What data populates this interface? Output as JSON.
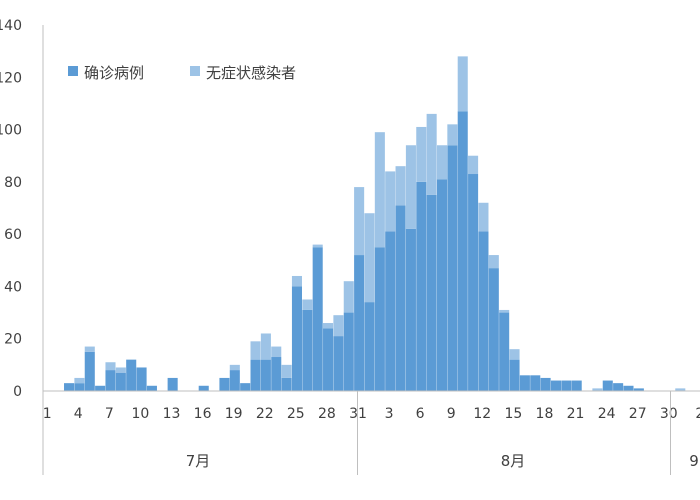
{
  "chart_data": {
    "type": "bar",
    "stacked": true,
    "title": "",
    "xlabel": "",
    "ylabel": "",
    "ylim": [
      0,
      140
    ],
    "yticks": [
      "0",
      "20",
      "40",
      "60",
      "80",
      "100",
      "120",
      "140"
    ],
    "grid": false,
    "legend": {
      "placement": "top-left"
    },
    "x_tick_labels": [
      "1",
      "4",
      "7",
      "10",
      "13",
      "16",
      "19",
      "22",
      "25",
      "28",
      "31",
      "3",
      "6",
      "9",
      "12",
      "15",
      "18",
      "21",
      "24",
      "27",
      "30",
      "2"
    ],
    "month_labels": [
      "7月",
      "8月",
      "9"
    ],
    "series": [
      {
        "name": "确诊病例",
        "color": "#5b9bd5",
        "values": [
          0,
          0,
          3,
          3,
          15,
          2,
          8,
          7,
          12,
          9,
          2,
          0,
          5,
          0,
          0,
          2,
          0,
          5,
          8,
          3,
          12,
          12,
          13,
          5,
          40,
          31,
          55,
          24,
          21,
          30,
          52,
          34,
          55,
          61,
          71,
          62,
          80,
          75,
          81,
          94,
          107,
          83,
          61,
          47,
          30,
          12,
          6,
          6,
          5,
          4,
          4,
          4,
          0,
          0,
          4,
          3,
          2,
          1,
          0,
          0,
          0,
          0,
          0,
          0,
          0,
          0,
          0,
          0,
          0,
          0,
          0,
          0
        ]
      },
      {
        "name": "无症状感染者",
        "color": "#9dc3e6",
        "values": [
          0,
          0,
          0,
          2,
          2,
          0,
          3,
          2,
          0,
          0,
          0,
          0,
          0,
          0,
          0,
          0,
          0,
          0,
          2,
          0,
          7,
          10,
          4,
          5,
          4,
          4,
          1,
          2,
          8,
          12,
          26,
          34,
          44,
          23,
          15,
          32,
          21,
          31,
          13,
          8,
          21,
          7,
          11,
          5,
          1,
          4,
          0,
          0,
          0,
          0,
          0,
          0,
          0,
          1,
          0,
          0,
          0,
          0,
          0,
          0,
          0,
          1,
          0,
          0,
          0,
          0,
          1,
          0,
          0,
          1,
          0,
          0
        ]
      }
    ]
  }
}
